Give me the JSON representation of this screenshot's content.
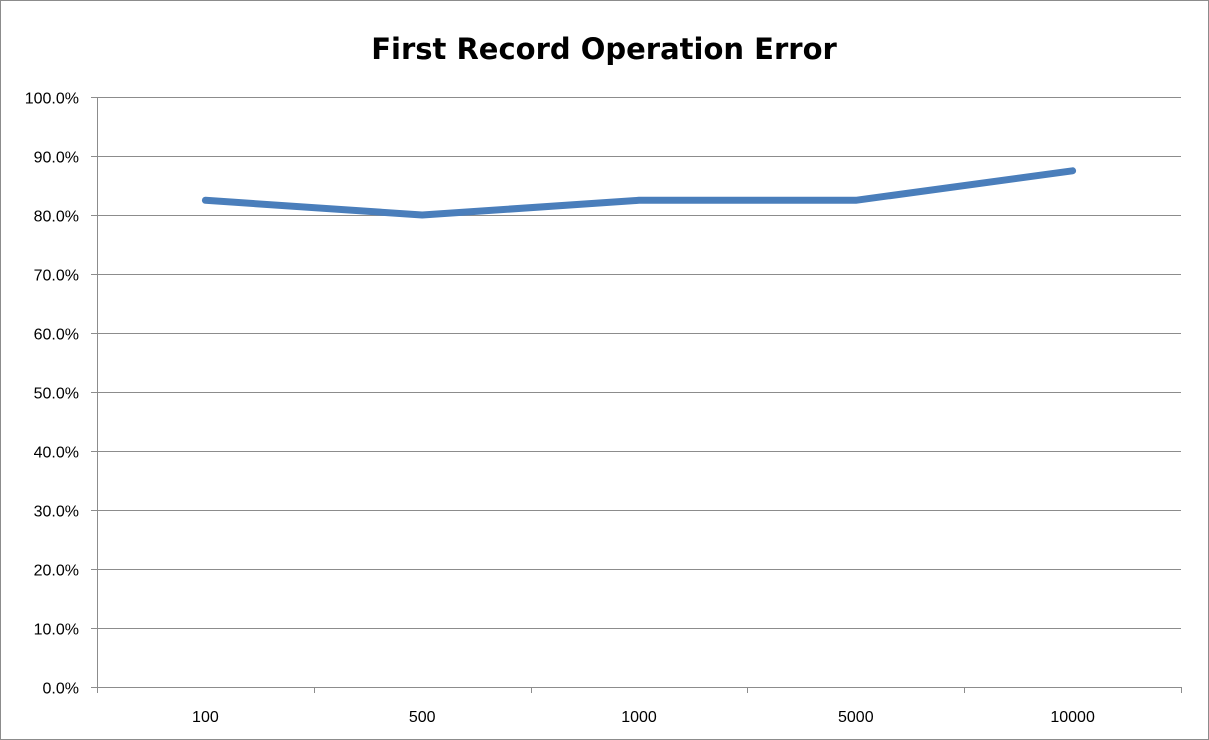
{
  "chart_data": {
    "type": "line",
    "title": "First Record Operation Error",
    "xlabel": "",
    "ylabel": "",
    "categories": [
      "100",
      "500",
      "1000",
      "5000",
      "10000"
    ],
    "series": [
      {
        "values": [
          0.825,
          0.8,
          0.825,
          0.825,
          0.875
        ],
        "color": "#4a7ebb"
      }
    ],
    "ylim": [
      0,
      1
    ],
    "yticks": [
      0,
      0.1,
      0.2,
      0.3,
      0.4,
      0.5,
      0.6,
      0.7,
      0.8,
      0.9,
      1.0
    ],
    "ytick_labels": [
      "0.0%",
      "10.0%",
      "20.0%",
      "30.0%",
      "40.0%",
      "50.0%",
      "60.0%",
      "70.0%",
      "80.0%",
      "90.0%",
      "100.0%"
    ],
    "grid": true,
    "legend": false
  },
  "colors": {
    "grid": "#8c8c8c",
    "axis": "#8c8c8c",
    "line": "#4a7ebb",
    "text": "#000000"
  }
}
